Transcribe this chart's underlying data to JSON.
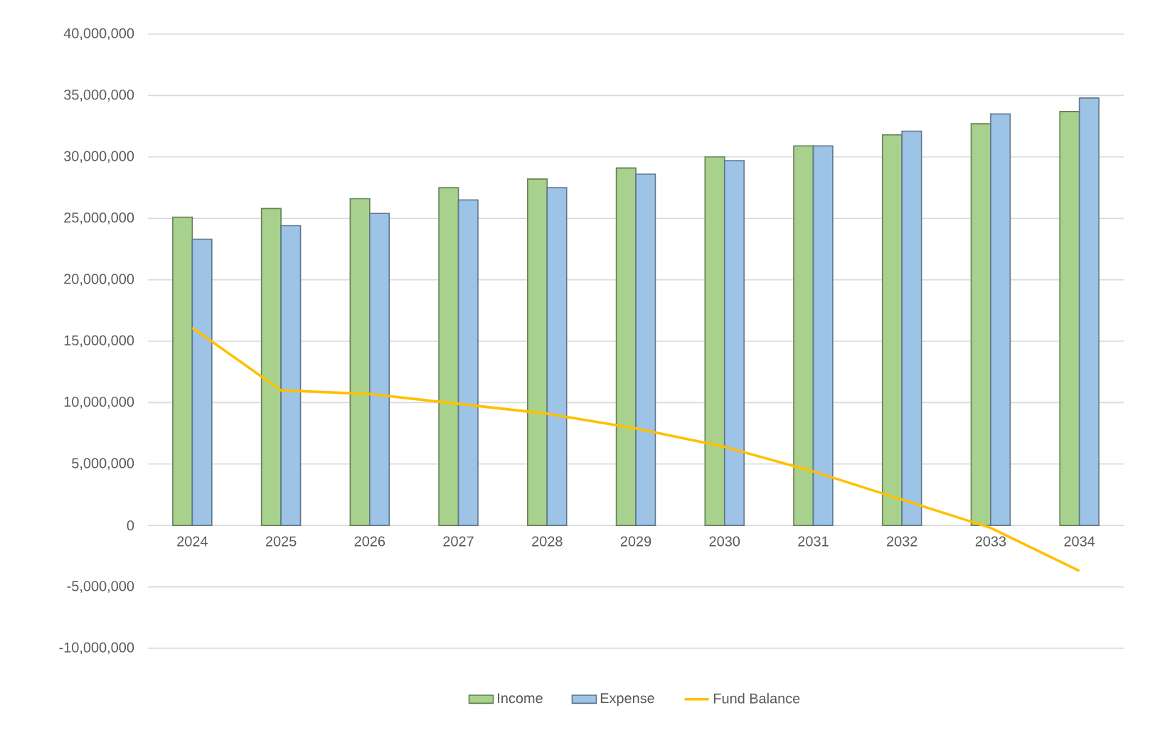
{
  "chart_data": {
    "type": "bar",
    "categories": [
      "2024",
      "2025",
      "2026",
      "2027",
      "2028",
      "2029",
      "2030",
      "2031",
      "2032",
      "2033",
      "2034"
    ],
    "series": [
      {
        "name": "Income",
        "color": "#a9d18e",
        "values": [
          25100000,
          25800000,
          26600000,
          27500000,
          28200000,
          29100000,
          30000000,
          30900000,
          31800000,
          32700000,
          33700000
        ]
      },
      {
        "name": "Expense",
        "color": "#9dc3e6",
        "values": [
          23300000,
          24400000,
          25400000,
          26500000,
          27500000,
          28600000,
          29700000,
          30900000,
          32100000,
          33500000,
          34800000
        ]
      },
      {
        "name": "Fund Balance",
        "type": "line",
        "color": "#ffc000",
        "values": [
          16100000,
          11000000,
          10700000,
          9900000,
          9100000,
          7900000,
          6400000,
          4400000,
          2100000,
          -200000,
          -3700000
        ]
      }
    ],
    "ylim": [
      -10000000,
      40000000
    ],
    "yticks": [
      {
        "value": -10000000,
        "label": "-10,000,000"
      },
      {
        "value": -5000000,
        "label": "-5,000,000"
      },
      {
        "value": 0,
        "label": "0"
      },
      {
        "value": 5000000,
        "label": "5,000,000"
      },
      {
        "value": 10000000,
        "label": "10,000,000"
      },
      {
        "value": 15000000,
        "label": "15,000,000"
      },
      {
        "value": 20000000,
        "label": "20,000,000"
      },
      {
        "value": 25000000,
        "label": "25,000,000"
      },
      {
        "value": 30000000,
        "label": "30,000,000"
      },
      {
        "value": 35000000,
        "label": "35,000,000"
      },
      {
        "value": 40000000,
        "label": "40,000,000"
      }
    ],
    "grid": "y",
    "legend": "bottom"
  }
}
